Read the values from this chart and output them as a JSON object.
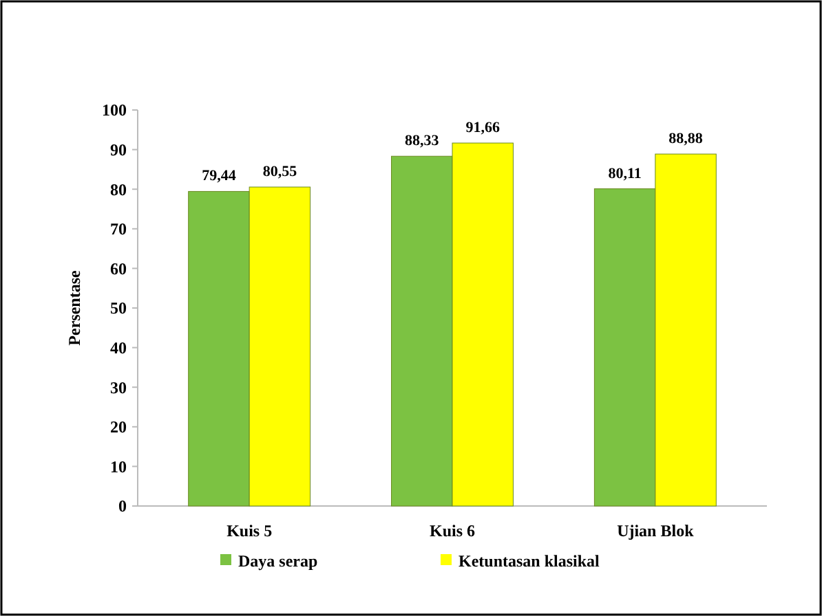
{
  "chart_data": {
    "type": "bar",
    "ylabel": "Persentase",
    "categories": [
      "Kuis 5",
      "Kuis 6",
      "Ujian Blok"
    ],
    "series": [
      {
        "name": "Daya serap",
        "color": "#7cc242",
        "values": [
          79.44,
          88.33,
          80.11
        ],
        "value_labels": [
          "79,44",
          "88,33",
          "80,11"
        ]
      },
      {
        "name": "Ketuntasan klasikal",
        "color": "#ffff00",
        "values": [
          80.55,
          91.66,
          88.88
        ],
        "value_labels": [
          "80,55",
          "91,66",
          "88,88"
        ]
      }
    ],
    "ylim": [
      0,
      100
    ],
    "yticks": [
      0,
      10,
      20,
      30,
      40,
      50,
      60,
      70,
      80,
      90,
      100
    ],
    "grid": false,
    "legend": "bottom"
  }
}
